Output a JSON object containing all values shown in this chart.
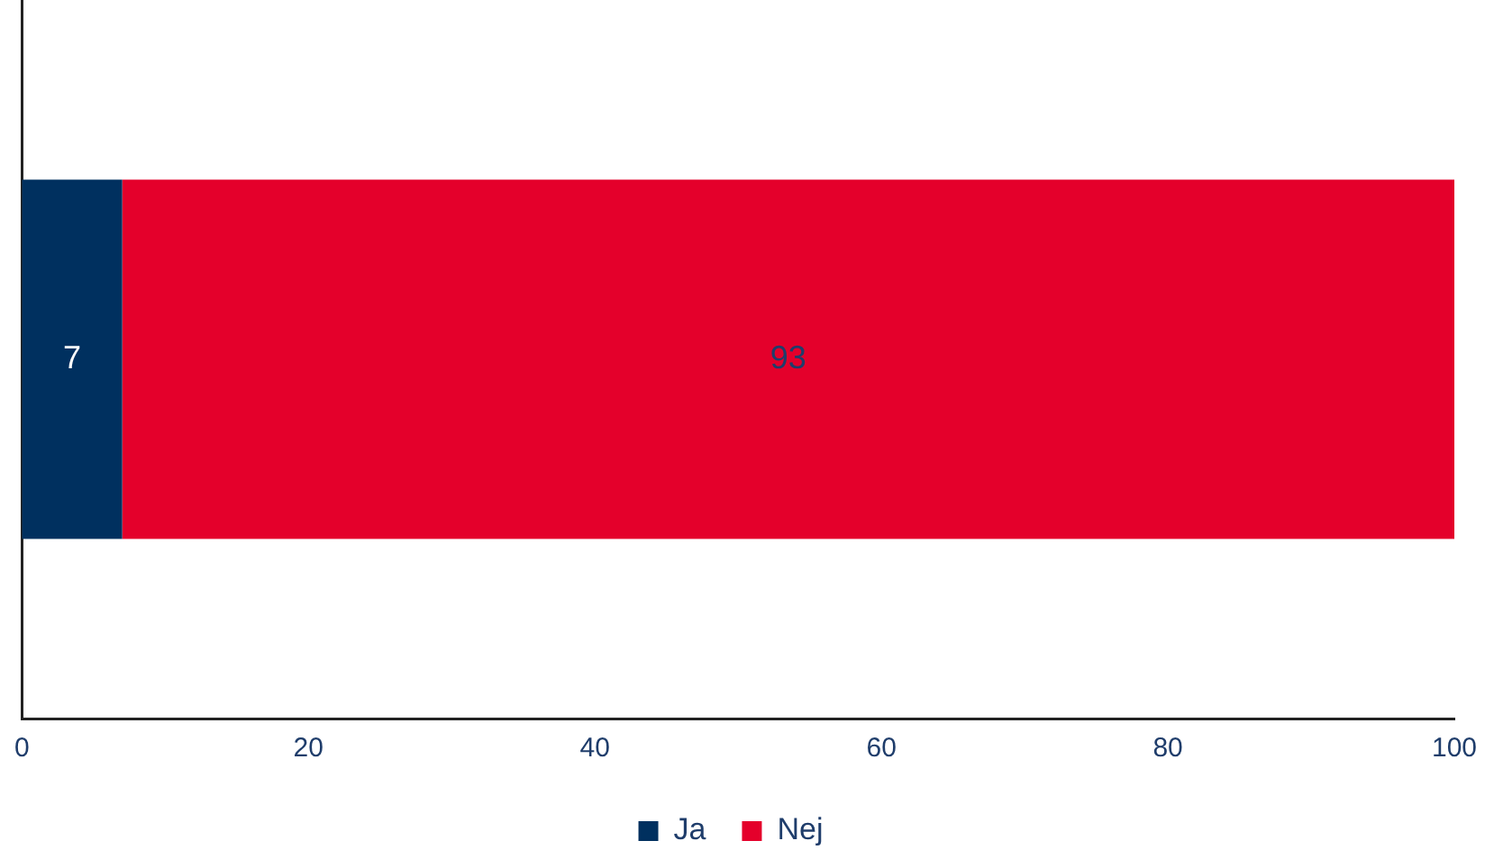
{
  "chart_data": {
    "type": "bar",
    "orientation": "horizontal",
    "stacked": true,
    "categories": [
      null
    ],
    "series": [
      {
        "name": "Ja",
        "color": "#00305f",
        "values": [
          7
        ]
      },
      {
        "name": "Nej",
        "color": "#e4002b",
        "values": [
          93
        ]
      }
    ],
    "xlim": [
      0,
      100
    ],
    "xticks": [
      0,
      20,
      40,
      60,
      80,
      100
    ],
    "grid": false,
    "legend": "bottom",
    "data_labels": true
  }
}
